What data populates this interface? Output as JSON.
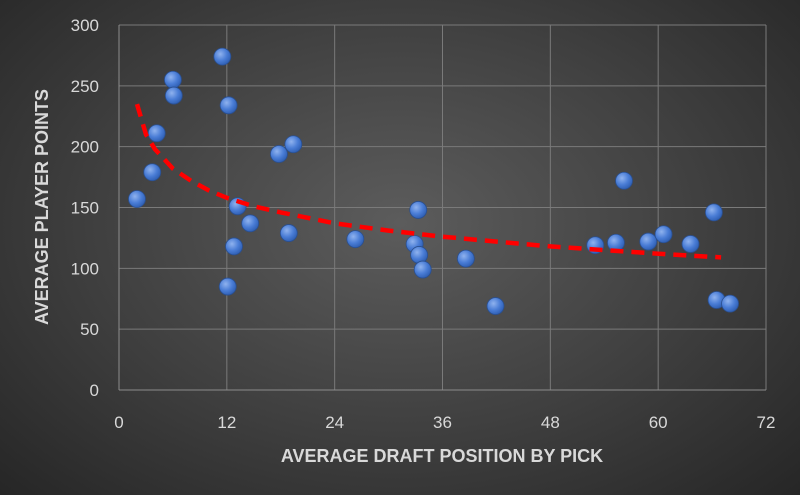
{
  "chart_data": {
    "type": "scatter",
    "xlabel": "AVERAGE DRAFT POSITION BY PICK",
    "ylabel": "AVERAGE PLAYER POINTS",
    "xlim": [
      0,
      72
    ],
    "ylim": [
      0,
      300
    ],
    "xticks": [
      0,
      12,
      24,
      36,
      48,
      60,
      72
    ],
    "yticks": [
      0,
      50,
      100,
      150,
      200,
      250,
      300
    ],
    "grid": true,
    "legend": "none",
    "point_color": "#4472c4",
    "trendline_color": "#ff0000",
    "trendline_style": "dashed",
    "trendline_range": [
      2,
      67
    ],
    "trendline_points": [
      {
        "x": 2,
        "y": 235
      },
      {
        "x": 3,
        "y": 210
      },
      {
        "x": 4,
        "y": 198
      },
      {
        "x": 6,
        "y": 182
      },
      {
        "x": 8,
        "y": 172
      },
      {
        "x": 10,
        "y": 164
      },
      {
        "x": 12,
        "y": 158
      },
      {
        "x": 15,
        "y": 151
      },
      {
        "x": 18,
        "y": 146
      },
      {
        "x": 24,
        "y": 137
      },
      {
        "x": 30,
        "y": 131
      },
      {
        "x": 36,
        "y": 126
      },
      {
        "x": 42,
        "y": 122
      },
      {
        "x": 48,
        "y": 118
      },
      {
        "x": 54,
        "y": 115
      },
      {
        "x": 60,
        "y": 112
      },
      {
        "x": 67,
        "y": 109
      }
    ],
    "points": [
      {
        "x": 2.0,
        "y": 157
      },
      {
        "x": 3.7,
        "y": 179
      },
      {
        "x": 4.2,
        "y": 211
      },
      {
        "x": 6.0,
        "y": 255
      },
      {
        "x": 6.1,
        "y": 242
      },
      {
        "x": 11.5,
        "y": 274
      },
      {
        "x": 12.2,
        "y": 234
      },
      {
        "x": 12.1,
        "y": 85
      },
      {
        "x": 12.8,
        "y": 118
      },
      {
        "x": 13.2,
        "y": 151
      },
      {
        "x": 14.6,
        "y": 137
      },
      {
        "x": 17.8,
        "y": 194
      },
      {
        "x": 18.9,
        "y": 129
      },
      {
        "x": 19.4,
        "y": 202
      },
      {
        "x": 26.3,
        "y": 124
      },
      {
        "x": 32.9,
        "y": 120
      },
      {
        "x": 33.3,
        "y": 148
      },
      {
        "x": 33.4,
        "y": 111
      },
      {
        "x": 33.8,
        "y": 99
      },
      {
        "x": 38.6,
        "y": 108
      },
      {
        "x": 41.9,
        "y": 69
      },
      {
        "x": 53.0,
        "y": 119
      },
      {
        "x": 55.3,
        "y": 121
      },
      {
        "x": 56.2,
        "y": 172
      },
      {
        "x": 58.9,
        "y": 122
      },
      {
        "x": 60.6,
        "y": 128
      },
      {
        "x": 63.6,
        "y": 120
      },
      {
        "x": 66.2,
        "y": 146
      },
      {
        "x": 66.5,
        "y": 74
      },
      {
        "x": 68.0,
        "y": 71
      }
    ]
  }
}
